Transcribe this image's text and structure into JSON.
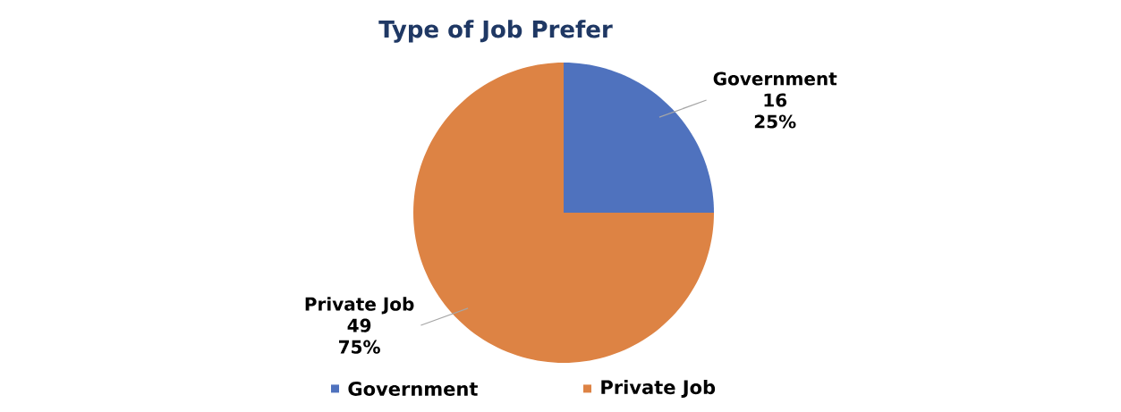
{
  "chart_data": {
    "type": "pie",
    "title": "Type of Job Prefer",
    "categories": [
      "Government",
      "Private Job"
    ],
    "values": [
      25,
      75
    ],
    "annotations": [
      "16",
      "49"
    ],
    "colors": [
      "#4f72be",
      "#dd8344"
    ],
    "value_labels": [
      "25%",
      "75%"
    ],
    "legend": "bottom"
  }
}
